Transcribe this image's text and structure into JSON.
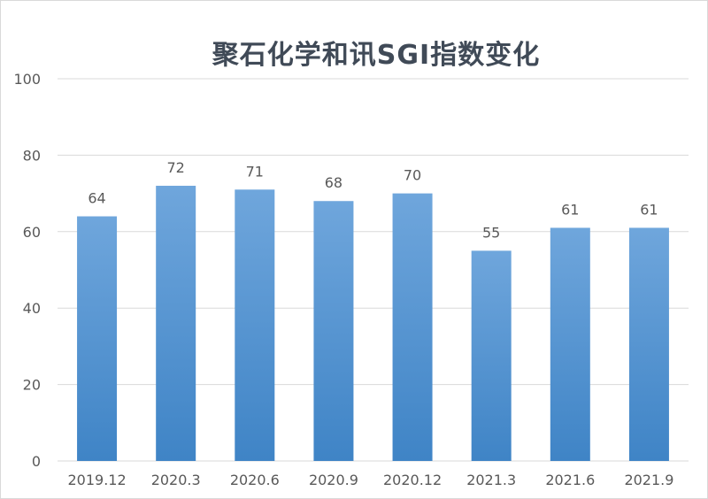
{
  "chart_data": {
    "type": "bar",
    "title": "聚石化学和讯SGI指数变化",
    "xlabel": "",
    "ylabel": "",
    "categories": [
      "2019.12",
      "2020.3",
      "2020.6",
      "2020.9",
      "2020.12",
      "2021.3",
      "2021.6",
      "2021.9"
    ],
    "values": [
      64,
      72,
      71,
      68,
      70,
      55,
      61,
      61
    ],
    "data_labels": [
      "64",
      "72",
      "71",
      "68",
      "70",
      "55",
      "61",
      "61"
    ],
    "ylim": [
      0,
      100
    ],
    "yticks": [
      0,
      20,
      40,
      60,
      80,
      100
    ],
    "ytick_labels": [
      "0",
      "20",
      "40",
      "60",
      "80",
      "100"
    ],
    "grid": true,
    "legend": "none",
    "colors": {
      "bar_top": "#6fa6dc",
      "bar_bottom": "#3f84c6",
      "grid": "#d9d9d9",
      "text": "#595959",
      "title": "#404a57"
    }
  }
}
